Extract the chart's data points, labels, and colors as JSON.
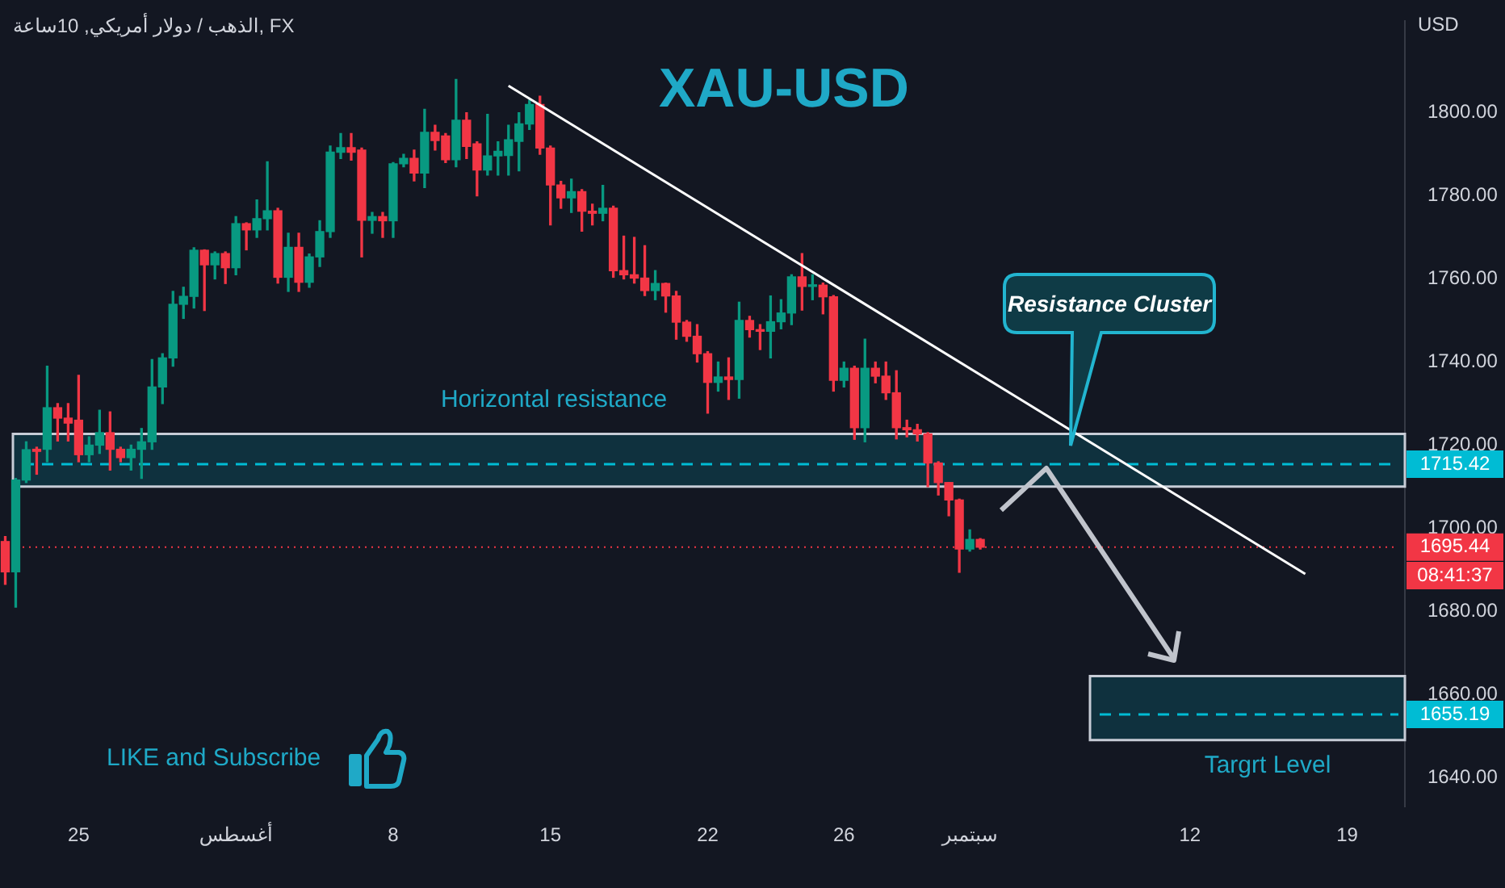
{
  "chart_data": {
    "type": "candlestick",
    "title": "XAU-USD",
    "subtitle": "الذهب / دولار أمريكي, 10ساعة, FX",
    "ylabel": "USD",
    "categories": [
      null,
      null,
      null,
      null,
      null,
      null,
      null,
      "25",
      null,
      null,
      null,
      null,
      null,
      null,
      null,
      null,
      null,
      null,
      null,
      null,
      null,
      null,
      "أغسطس",
      null,
      null,
      null,
      null,
      null,
      null,
      null,
      null,
      null,
      null,
      null,
      null,
      null,
      null,
      "8",
      null,
      null,
      null,
      null,
      null,
      null,
      null,
      null,
      null,
      null,
      null,
      null,
      null,
      null,
      "15",
      null,
      null,
      null,
      null,
      null,
      null,
      null,
      null,
      null,
      null,
      null,
      null,
      null,
      null,
      "22",
      null,
      null,
      null,
      null,
      null,
      null,
      null,
      null,
      null,
      null,
      null,
      null,
      "26",
      null,
      null,
      null,
      null,
      null,
      null,
      null,
      null,
      null,
      null,
      null,
      "سبتمبر",
      null,
      null,
      null,
      null,
      null,
      null,
      null,
      null,
      null,
      null,
      null,
      null,
      null,
      null,
      null,
      null,
      null,
      null,
      null,
      null,
      "12",
      null,
      null,
      null,
      null,
      null,
      null,
      null,
      null,
      null,
      null,
      null,
      null,
      null,
      null,
      "19",
      null,
      null,
      null,
      null,
      null
    ],
    "ohlc": [
      [
        1696.8,
        1698,
        1686.5,
        1689.5
      ],
      [
        1689.5,
        1712,
        1681,
        1711.6
      ],
      [
        1711.6,
        1720.8,
        1711,
        1718.9
      ],
      [
        1719,
        1719.5,
        1713,
        1718.5
      ],
      [
        1719,
        1739,
        1716,
        1729
      ],
      [
        1729,
        1730,
        1721,
        1726.5
      ],
      [
        1726.5,
        1730,
        1721,
        1725.3
      ],
      [
        1726,
        1736.8,
        1716,
        1717.7
      ],
      [
        1717.7,
        1722,
        1716,
        1720
      ],
      [
        1720,
        1728.4,
        1718,
        1723
      ],
      [
        1723,
        1728,
        1714,
        1719
      ],
      [
        1719,
        1719.5,
        1716,
        1717
      ],
      [
        1717,
        1720,
        1714,
        1719
      ],
      [
        1719,
        1724,
        1712,
        1720.8
      ],
      [
        1720.8,
        1740.6,
        1719,
        1734
      ],
      [
        1734,
        1742,
        1730,
        1741
      ],
      [
        1741,
        1757,
        1739,
        1753.9
      ],
      [
        1753.9,
        1758,
        1750.5,
        1755.8
      ],
      [
        1755.8,
        1767.5,
        1753,
        1766.9
      ],
      [
        1766.9,
        1767,
        1752.4,
        1763.4
      ],
      [
        1763.4,
        1766.5,
        1760,
        1766.1
      ],
      [
        1766.1,
        1766.5,
        1758.9,
        1762.7
      ],
      [
        1762.7,
        1775,
        1761,
        1773.3
      ],
      [
        1773.3,
        1773.5,
        1767,
        1771.8
      ],
      [
        1771.8,
        1779,
        1770,
        1774.5
      ],
      [
        1774.5,
        1788.2,
        1771.8,
        1776.4
      ],
      [
        1776.4,
        1777,
        1759,
        1760.4
      ],
      [
        1760.4,
        1771,
        1757,
        1767.6
      ],
      [
        1767.6,
        1771,
        1757,
        1759.2
      ],
      [
        1759.2,
        1766,
        1758,
        1765.3
      ],
      [
        1765.3,
        1774,
        1763,
        1771.4
      ],
      [
        1771.4,
        1792,
        1770,
        1790.5
      ],
      [
        1790.5,
        1795,
        1789,
        1791.6
      ],
      [
        1791.6,
        1795,
        1788.6,
        1790.5
      ],
      [
        1791,
        1791.5,
        1765.3,
        1774.1
      ],
      [
        1774.1,
        1776,
        1771,
        1775
      ],
      [
        1775,
        1776,
        1770,
        1774
      ],
      [
        1774,
        1788,
        1770,
        1787.7
      ],
      [
        1787.7,
        1790,
        1787,
        1789
      ],
      [
        1789,
        1791,
        1783.6,
        1785.5
      ],
      [
        1785.5,
        1800.8,
        1782,
        1795.3
      ],
      [
        1795.3,
        1797,
        1791,
        1793.3
      ],
      [
        1794.4,
        1795,
        1788,
        1788.7
      ],
      [
        1788.7,
        1808,
        1787,
        1798.2
      ],
      [
        1798.2,
        1800,
        1789,
        1791.9
      ],
      [
        1792.5,
        1793,
        1780,
        1786.2
      ],
      [
        1786.2,
        1799.6,
        1785,
        1789.6
      ],
      [
        1789.6,
        1793,
        1785,
        1790.7
      ],
      [
        1789.7,
        1797,
        1785,
        1793.5
      ],
      [
        1793.1,
        1800,
        1786,
        1797.3
      ],
      [
        1797.3,
        1803,
        1796,
        1802
      ],
      [
        1802,
        1804,
        1790,
        1791.5
      ],
      [
        1791.5,
        1792,
        1773,
        1782.6
      ],
      [
        1782.6,
        1783.5,
        1777,
        1779.5
      ],
      [
        1779.5,
        1784,
        1776,
        1781
      ],
      [
        1781,
        1781.5,
        1771.5,
        1776.3
      ],
      [
        1776.3,
        1778,
        1773,
        1775.8
      ],
      [
        1775.8,
        1782.5,
        1774,
        1777
      ],
      [
        1777,
        1777.5,
        1760.4,
        1762
      ],
      [
        1762,
        1770.3,
        1760,
        1761
      ],
      [
        1761,
        1770,
        1759,
        1760.2
      ],
      [
        1760.2,
        1768,
        1756,
        1757.2
      ],
      [
        1757.2,
        1762,
        1755,
        1758.9
      ],
      [
        1758.9,
        1759,
        1752,
        1755.9
      ],
      [
        1755.9,
        1757,
        1745.5,
        1749.6
      ],
      [
        1749.6,
        1750,
        1745,
        1746.2
      ],
      [
        1746.2,
        1749,
        1740,
        1742
      ],
      [
        1742,
        1742.5,
        1727.7,
        1735.1
      ],
      [
        1735.1,
        1740,
        1733,
        1736.4
      ],
      [
        1736.4,
        1741,
        1731,
        1735.8
      ],
      [
        1735.8,
        1754.4,
        1731.3,
        1750
      ],
      [
        1750,
        1751,
        1746,
        1747.8
      ],
      [
        1747.8,
        1749,
        1743,
        1747.4
      ],
      [
        1747.4,
        1755.9,
        1741,
        1749.7
      ],
      [
        1749.7,
        1755,
        1748,
        1751.8
      ],
      [
        1751.8,
        1761,
        1749,
        1760.5
      ],
      [
        1760.5,
        1766.1,
        1752.5,
        1758.2
      ],
      [
        1758.2,
        1761,
        1755,
        1758.5
      ],
      [
        1758.5,
        1759,
        1751.6,
        1755.7
      ],
      [
        1755.7,
        1756,
        1733,
        1735.6
      ],
      [
        1735.6,
        1740,
        1734,
        1738.5
      ],
      [
        1738.5,
        1739,
        1721.4,
        1724.2
      ],
      [
        1724.2,
        1745.5,
        1720.8,
        1738.5
      ],
      [
        1738.5,
        1740,
        1735,
        1736.6
      ],
      [
        1736.6,
        1740,
        1731,
        1732.6
      ],
      [
        1732.6,
        1737.9,
        1721.5,
        1724.2
      ],
      [
        1724.2,
        1726,
        1722,
        1723.7
      ],
      [
        1723.7,
        1725,
        1721,
        1722.7
      ],
      [
        1722.7,
        1723,
        1710,
        1715.7
      ],
      [
        1715.7,
        1716,
        1708,
        1711
      ],
      [
        1711,
        1711,
        1703,
        1706.8
      ],
      [
        1706.8,
        1707,
        1689.4,
        1695
      ],
      [
        1695,
        1699.6,
        1694.5,
        1697.3
      ],
      [
        1697.3,
        1697.5,
        1695,
        1695.44
      ],
      null,
      null,
      null,
      null,
      null,
      null,
      null,
      null,
      null,
      null,
      null,
      null,
      null,
      null,
      null,
      null,
      null,
      null,
      null,
      null,
      null,
      null,
      null,
      null,
      null,
      null,
      null,
      null,
      null,
      null,
      null,
      null,
      null,
      null,
      null,
      null,
      null,
      null,
      null,
      null
    ],
    "colors": [
      "#f23645",
      "#089981",
      "#089981",
      "#f23645",
      "#089981",
      "#f23645",
      "#f23645",
      "#f23645",
      "#089981",
      "#089981",
      "#f23645",
      "#f23645",
      "#089981",
      "#089981",
      "#089981",
      "#089981",
      "#089981",
      "#089981",
      "#089981",
      "#f23645",
      "#089981",
      "#f23645",
      "#089981",
      "#f23645",
      "#089981",
      "#089981",
      "#f23645",
      "#089981",
      "#f23645",
      "#089981",
      "#089981",
      "#089981",
      "#089981",
      "#f23645",
      "#f23645",
      "#089981",
      "#f23645",
      "#089981",
      "#089981",
      "#f23645",
      "#089981",
      "#f23645",
      "#f23645",
      "#089981",
      "#f23645",
      "#f23645",
      "#089981",
      "#089981",
      "#089981",
      "#089981",
      "#089981",
      "#f23645",
      "#f23645",
      "#f23645",
      "#089981",
      "#f23645",
      "#f23645",
      "#089981",
      "#f23645",
      "#f23645",
      "#f23645",
      "#f23645",
      "#089981",
      "#f23645",
      "#f23645",
      "#f23645",
      "#f23645",
      "#f23645",
      "#089981",
      "#f23645",
      "#089981",
      "#f23645",
      "#f23645",
      "#089981",
      "#089981",
      "#089981",
      "#f23645",
      "#089981",
      "#f23645",
      "#f23645",
      "#089981",
      "#f23645",
      "#089981",
      "#f23645",
      "#f23645",
      "#f23645",
      "#f23645",
      "#f23645",
      "#f23645",
      "#f23645",
      "#f23645",
      "#f23645",
      "#089981",
      "#f23645",
      null,
      null,
      null,
      null,
      null,
      null,
      null,
      null,
      null,
      null,
      null,
      null,
      null,
      null,
      null,
      null,
      null,
      null,
      null,
      null,
      null,
      null,
      null,
      null,
      null,
      null,
      null,
      null,
      null,
      null,
      null,
      null,
      null,
      null,
      null,
      null,
      null,
      null,
      null,
      null
    ],
    "series": [
      {
        "type": "line",
        "color": "#ffffff",
        "values": [
          null,
          null,
          null,
          null,
          null,
          null,
          null,
          null,
          null,
          null,
          null,
          null,
          null,
          null,
          null,
          null,
          null,
          null,
          null,
          null,
          null,
          null,
          null,
          null,
          null,
          null,
          null,
          null,
          null,
          null,
          null,
          null,
          null,
          null,
          null,
          null,
          null,
          null,
          null,
          null,
          null,
          null,
          null,
          null,
          null,
          null,
          null,
          null,
          1806.5,
          null,
          null,
          null,
          null,
          null,
          null,
          null,
          null,
          null,
          null,
          null,
          null,
          null,
          null,
          null,
          null,
          null,
          null,
          null,
          null,
          null,
          null,
          null,
          null,
          null,
          null,
          null,
          null,
          null,
          null,
          null,
          null,
          null,
          null,
          null,
          null,
          null,
          null,
          null,
          null,
          null,
          null,
          null,
          null,
          null,
          null,
          null,
          null,
          null,
          null,
          null,
          null,
          null,
          null,
          null,
          null,
          null,
          null,
          null,
          null,
          null,
          null,
          null,
          null,
          null,
          null,
          null,
          null,
          null,
          null,
          null,
          null,
          null,
          null,
          null,
          1689,
          null,
          null,
          null,
          null,
          null,
          null,
          null,
          null,
          null
        ]
      }
    ],
    "ylim": [
      1633,
      1822
    ],
    "yticks": [
      {
        "value": 1640,
        "label": "1640.00"
      },
      {
        "value": 1660,
        "label": "1660.00"
      },
      {
        "value": 1680,
        "label": "1680.00"
      },
      {
        "value": 1700,
        "label": "1700.00"
      },
      {
        "value": 1720,
        "label": "1720.00"
      },
      {
        "value": 1740,
        "label": "1740.00"
      },
      {
        "value": 1760,
        "label": "1760.00"
      },
      {
        "value": 1780,
        "label": "1780.00"
      },
      {
        "value": 1800,
        "label": "1800.00"
      }
    ],
    "bands": [
      {
        "axis": "y",
        "from": 1710,
        "to": 1722.7,
        "label": "Horizontal resistance",
        "color": "#00bcd4"
      },
      {
        "axis": "y",
        "from": 1649,
        "to": 1664.4,
        "label": "Targrt Level",
        "color": "#00bcd4"
      }
    ],
    "ref_lines": [
      {
        "axis": "y",
        "value": 1715.42,
        "label": "1715.42",
        "color": "#00bcd4",
        "line_style": "dashed"
      },
      {
        "axis": "y",
        "value": 1695.44,
        "label": "1695.44",
        "color": "#f23645",
        "line_style": "dotted"
      },
      {
        "axis": "y",
        "value": 1655.19,
        "label": "1655.19",
        "color": "#00bcd4",
        "line_style": "dashed"
      }
    ],
    "annotations": [
      "Resistance Cluster",
      "LIKE and Subscribe",
      "08:41:37"
    ]
  }
}
